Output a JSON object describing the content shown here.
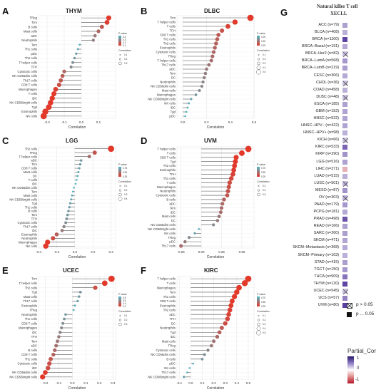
{
  "panels": [
    {
      "id": "A",
      "title": "THYM",
      "xlabel": "Correlation",
      "xlim": [
        -0.25,
        0.2
      ],
      "ticks": [
        -0.2,
        -0.1,
        0.0,
        0.1
      ],
      "tick_labels": [
        "-0.2",
        "-0.1",
        "0.0",
        "0.1"
      ],
      "legend_title_p": "P value",
      "legend_title_c": "Correlation",
      "legend_p": [
        "0.4",
        "0.3",
        "0.2",
        "0.1"
      ],
      "legend_c": [
        "0.1",
        "0.2",
        "1.5"
      ],
      "cells": [
        "TReg",
        "Tcm",
        "B cells",
        "Mast cells",
        "aDC",
        "Neutrophils",
        "Tem",
        "Th1 cells",
        "pDC",
        "Th2 cells",
        "T helper cells",
        "TFH",
        "Cytotoxic cells",
        "NK CD56dim cells",
        "Th17 cells",
        "CD8 T cells",
        "Macrophages",
        "T cells",
        "iDC",
        "NK CD56bright cells",
        "Tgd",
        "Eosinophils",
        "NK cells"
      ],
      "values": [
        0.16,
        0.15,
        0.12,
        0.1,
        0.08,
        0.07,
        -0.01,
        -0.02,
        -0.03,
        -0.04,
        -0.05,
        -0.06,
        -0.1,
        -0.11,
        -0.12,
        -0.13,
        -0.15,
        -0.16,
        -0.17,
        -0.18,
        -0.19,
        -0.21,
        -0.22
      ]
    },
    {
      "id": "B",
      "title": "DLBC",
      "xlabel": "Correlation",
      "xlim": [
        -0.05,
        0.6
      ],
      "ticks": [
        0.0,
        0.2,
        0.4,
        0.6
      ],
      "tick_labels": [
        "0.0",
        "0.2",
        "0.4",
        "0.6"
      ],
      "legend_title_p": "P value",
      "legend_title_c": "Correlation",
      "legend_p": [
        "0.25",
        "0.20",
        "0.15"
      ],
      "legend_c": [
        "0.1",
        "0.2",
        "0.3",
        "0.4",
        "0.5"
      ],
      "cells": [
        "Tcm",
        "T helper cells",
        "T cells",
        "TFH",
        "CD8 T cells",
        "Th1 cells",
        "Th2 cells",
        "Eosinophils",
        "Cytotoxic cells",
        "TReg",
        "T helper cells",
        "Th17 cells",
        "aDC",
        "Tem",
        "DC",
        "Neutrophils",
        "NK CD56dim cells",
        "Mast cells",
        "Macrophages",
        "NK CD56bright cells",
        "NK cells",
        "iDC",
        "Tgd",
        "pDC"
      ],
      "values": [
        0.57,
        0.44,
        0.38,
        0.33,
        0.3,
        0.29,
        0.28,
        0.27,
        0.26,
        0.25,
        0.24,
        0.22,
        0.2,
        0.19,
        0.18,
        0.17,
        0.16,
        0.14,
        0.11,
        0.07,
        0.05,
        0.04,
        0.03,
        0.02
      ]
    },
    {
      "id": "C",
      "title": "LGG",
      "xlabel": "Correlation",
      "xlim": [
        -0.4,
        0.45
      ],
      "ticks": [
        -0.4,
        -0.2,
        0.0,
        0.2,
        0.4
      ],
      "tick_labels": [
        "-0.4",
        "-0.2",
        "0.0",
        "0.2",
        "0.4"
      ],
      "legend_title_p": "P value",
      "legend_title_c": "Correlation",
      "legend_p": [
        "0.75",
        "0.50",
        "0.25"
      ],
      "legend_c": [
        "0.1",
        "0.2",
        "0.3",
        "0.4"
      ],
      "cells": [
        "Th2 cells",
        "TReg",
        "T helper cells",
        "aDC",
        "Tcm",
        "CD8 T cells",
        "Mast cells",
        "DC",
        "T cells",
        "iDC",
        "NK CD56dim cells",
        "Tem",
        "Mast cells",
        "NK CD56bright cells",
        "Tgd",
        "Th1 cells",
        "B cells",
        "Tem",
        "TFH",
        "Cytotoxic cells",
        "Th17 cells",
        "iDC",
        "Eosinophils",
        "Neutrophils",
        "Macrophages",
        "NK cells"
      ],
      "values": [
        0.4,
        0.22,
        0.16,
        0.07,
        0.06,
        0.05,
        0.04,
        0.03,
        0.02,
        0.01,
        -0.01,
        -0.02,
        -0.03,
        -0.04,
        -0.05,
        -0.06,
        -0.07,
        -0.08,
        -0.09,
        -0.1,
        -0.12,
        -0.14,
        -0.2,
        -0.24,
        -0.3,
        -0.32
      ]
    },
    {
      "id": "D",
      "title": "UVM",
      "xlabel": "Correlation",
      "xlim": [
        -0.3,
        0.65
      ],
      "ticks": [
        -0.25,
        0.0,
        0.25,
        0.5
      ],
      "tick_labels": [
        "-0.25",
        "0.00",
        "0.25",
        "0.50"
      ],
      "legend_title_p": "P value",
      "legend_title_c": "Correlation",
      "legend_p": [
        "0.75",
        "0.50",
        "0.25"
      ],
      "legend_c": [
        "0.2",
        "0.4",
        "0.6"
      ],
      "cells": [
        "T helper cells",
        "T cells",
        "CD8 T cells",
        "Tgd",
        "Th2 cells",
        "Eosinophils",
        "TFH",
        "Th1 cells",
        "T cells",
        "Macrophages",
        "Neutrophils",
        "Cytotoxic cells",
        "B cells",
        "aDC",
        "Tem",
        "iDC",
        "Mast cells",
        "DC",
        "NK CD56dim cells",
        "NK CD56bright cells",
        "NK cells",
        "TReg",
        "pDC",
        "Th17 cells"
      ],
      "values": [
        0.58,
        0.5,
        0.43,
        0.42,
        0.41,
        0.4,
        0.39,
        0.37,
        0.35,
        0.34,
        0.33,
        0.32,
        0.28,
        0.26,
        0.25,
        0.24,
        0.22,
        0.2,
        0.15,
        -0.03,
        -0.08,
        -0.15,
        -0.2,
        -0.25
      ]
    },
    {
      "id": "E",
      "title": "UCEC",
      "xlabel": "Correlation",
      "xlim": [
        -0.25,
        0.32
      ],
      "ticks": [
        -0.2,
        -0.1,
        0.0,
        0.1,
        0.2,
        0.3
      ],
      "tick_labels": [
        "-0.2",
        "-0.1",
        "0.0",
        "0.1",
        "0.2",
        "0.3"
      ],
      "legend_title_p": "P value",
      "legend_title_c": "Correlation",
      "legend_p": [
        "0.8",
        "0.6",
        "0.4",
        "0.2"
      ],
      "legend_c": [
        "0.1",
        "0.2",
        "0.3"
      ],
      "cells": [
        "Tcm",
        "T helper cells",
        "Th2 cells",
        "Tgd",
        "Mast cells",
        "Th17 cells",
        "Eosinophils",
        "TReg",
        "Neutrophils",
        "Th1 cells",
        "CD8 T cells",
        "Macrophages",
        "iDC",
        "TFH",
        "Tem",
        "aDC",
        "B cells",
        "CD8 T cells",
        "Th1 cells",
        "Cytotoxic cells",
        "iDC",
        "NK CD56dim cells",
        "NK CD56bright cells"
      ],
      "values": [
        0.29,
        0.24,
        0.17,
        0.06,
        0.05,
        0.04,
        0.02,
        0.01,
        -0.05,
        -0.06,
        -0.07,
        -0.08,
        -0.09,
        -0.1,
        -0.11,
        -0.12,
        -0.13,
        -0.14,
        -0.16,
        -0.17,
        -0.18,
        -0.2,
        -0.22
      ]
    },
    {
      "id": "F",
      "title": "KIRC",
      "xlabel": "Correlation",
      "xlim": [
        -0.12,
        0.55
      ],
      "ticks": [
        -0.1,
        0.0,
        0.1,
        0.2,
        0.3,
        0.4,
        0.5
      ],
      "tick_labels": [
        "-0.1",
        "0.0",
        "0.1",
        "0.2",
        "0.3",
        "0.4",
        "0.5"
      ],
      "legend_title_p": "P value",
      "legend_title_c": "Correlation",
      "legend_p": [
        "0.75",
        "0.50",
        "0.25"
      ],
      "legend_c": [
        "0.1",
        "0.2",
        "0.3",
        "0.4",
        "0.5"
      ],
      "cells": [
        "T helper cells",
        "T cells",
        "Macrophages",
        "Tem",
        "Th1 cells",
        "CD8 T cells",
        "Eosinophils",
        "Th2 cells",
        "aDC",
        "TFH",
        "DC",
        "Neutrophils",
        "Tgd",
        "iDC",
        "Mast cells",
        "TReg",
        "Cytotoxic cells",
        "NK CD56dim cells",
        "B cells",
        "pDC",
        "NK cells",
        "Th17 cells",
        "NK CD56bright cells"
      ],
      "values": [
        0.5,
        0.47,
        0.42,
        0.4,
        0.38,
        0.36,
        0.35,
        0.34,
        0.33,
        0.32,
        0.3,
        0.27,
        0.25,
        0.23,
        0.2,
        0.18,
        0.15,
        0.12,
        0.1,
        0.02,
        -0.01,
        -0.03,
        -0.06
      ]
    }
  ],
  "heatmap": {
    "id": "G",
    "title_line1": "Natural killer T cell",
    "title_line2": "XECLL",
    "legend_ns": "p > 0.05",
    "legend_sig": "p ... 0.05",
    "legend_title": "Partial_Cor",
    "legend_ticks": [
      "1",
      "0",
      "-1"
    ],
    "rows": [
      {
        "label": "ACC (n=79)",
        "value": 0.15,
        "ns": false
      },
      {
        "label": "BLCA (n=408)",
        "value": 0.1,
        "ns": false
      },
      {
        "label": "BRCA (n=1100)",
        "value": 0.45,
        "ns": false
      },
      {
        "label": "BRCA−Basal (n=191)",
        "value": 0.12,
        "ns": false
      },
      {
        "label": "BRCA−Her2 (n=82)",
        "value": 0.05,
        "ns": true
      },
      {
        "label": "BRCA−LumA (n=568)",
        "value": 0.18,
        "ns": false
      },
      {
        "label": "BRCA−LumB (n=219)",
        "value": 0.16,
        "ns": false
      },
      {
        "label": "CESC (n=306)",
        "value": 0.12,
        "ns": false
      },
      {
        "label": "CHOL (n=36)",
        "value": 0.05,
        "ns": true
      },
      {
        "label": "COAD (n=458)",
        "value": 0.1,
        "ns": false
      },
      {
        "label": "DLBC (n=48)",
        "value": 0.05,
        "ns": true
      },
      {
        "label": "ESCA (n=185)",
        "value": 0.15,
        "ns": false
      },
      {
        "label": "GBM (n=153)",
        "value": 0.14,
        "ns": false
      },
      {
        "label": "HNSC (n=522)",
        "value": 0.14,
        "ns": false
      },
      {
        "label": "HNSC−HPV− (n=422)",
        "value": 0.14,
        "ns": false
      },
      {
        "label": "HNSC−HPV+ (n=98)",
        "value": 0.1,
        "ns": false
      },
      {
        "label": "KICH (n=66)",
        "value": 0.05,
        "ns": true
      },
      {
        "label": "KIRC (n=533)",
        "value": 0.35,
        "ns": false
      },
      {
        "label": "KIRP (n=290)",
        "value": 0.2,
        "ns": false
      },
      {
        "label": "LGG (n=516)",
        "value": 0.15,
        "ns": false
      },
      {
        "label": "LIHC (n=371)",
        "value": -0.15,
        "ns": false
      },
      {
        "label": "LUAD (n=515)",
        "value": 0.1,
        "ns": false
      },
      {
        "label": "LUSC (n=501)",
        "value": 0.08,
        "ns": true
      },
      {
        "label": "MESO (n=87)",
        "value": 0.2,
        "ns": false
      },
      {
        "label": "OV (n=303)",
        "value": 0.1,
        "ns": true
      },
      {
        "label": "PAAD (n=179)",
        "value": 0.18,
        "ns": false
      },
      {
        "label": "PCPG (n=181)",
        "value": 0.12,
        "ns": false
      },
      {
        "label": "PRAD (n=498)",
        "value": 0.4,
        "ns": false
      },
      {
        "label": "READ (n=166)",
        "value": 0.15,
        "ns": false
      },
      {
        "label": "SARC (n=260)",
        "value": 0.16,
        "ns": false
      },
      {
        "label": "SKCM (n=471)",
        "value": 0.14,
        "ns": false
      },
      {
        "label": "SKCM−Metastasis (n=368)",
        "value": 0.12,
        "ns": false
      },
      {
        "label": "SKCM−Primary (n=103)",
        "value": 0.1,
        "ns": false
      },
      {
        "label": "STAD (n=415)",
        "value": 0.16,
        "ns": false
      },
      {
        "label": "TGCT (n=150)",
        "value": 0.18,
        "ns": false
      },
      {
        "label": "THCA (n=509)",
        "value": 0.3,
        "ns": false
      },
      {
        "label": "THYM (n=120)",
        "value": 0.45,
        "ns": false
      },
      {
        "label": "UCEC (n=545)",
        "value": 0.05,
        "ns": true
      },
      {
        "label": "UCS (n=57)",
        "value": 0.25,
        "ns": false
      },
      {
        "label": "UVM (n=80)",
        "value": 0.55,
        "ns": false
      }
    ]
  },
  "colors": {
    "lollipop_high": "#e2392b",
    "lollipop_low": "#4fb8c9",
    "heat_pos": "#5a3fa0",
    "heat_neg": "#b2182b"
  }
}
